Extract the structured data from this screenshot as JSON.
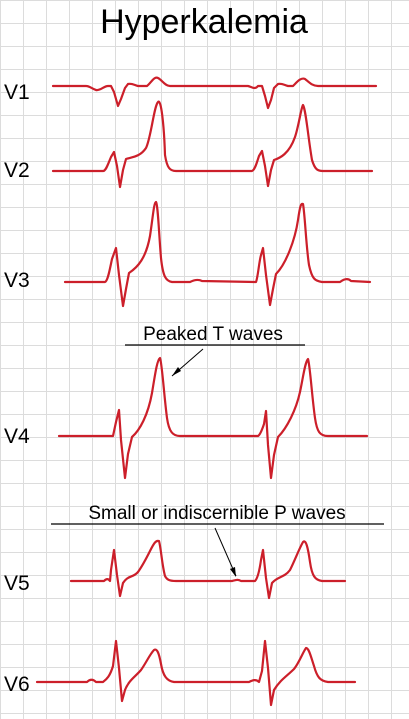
{
  "title": "Hyperkalemia",
  "colors": {
    "trace": "#cc1f2a",
    "grid": "#dcdcdc",
    "text": "#000000"
  },
  "leads": [
    {
      "label": "V1"
    },
    {
      "label": "V2"
    },
    {
      "label": "V3"
    },
    {
      "label": "V4"
    },
    {
      "label": "V5"
    },
    {
      "label": "V6"
    }
  ],
  "annotations": {
    "peaked_t": "Peaked T waves",
    "small_p": "Small or indiscernible P waves"
  }
}
